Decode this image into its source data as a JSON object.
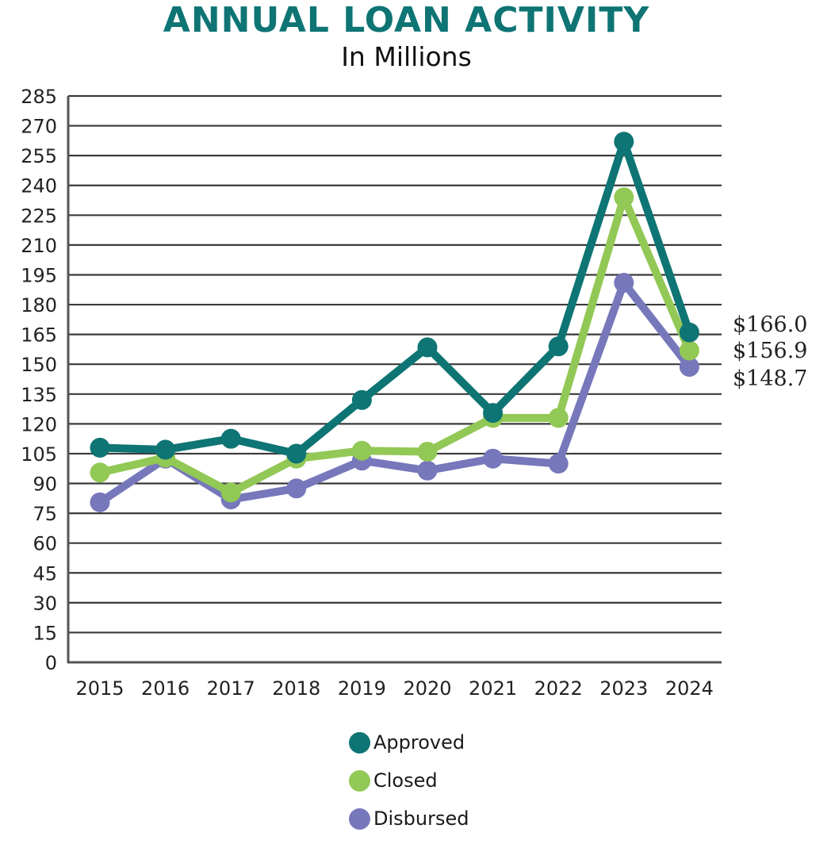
{
  "chart_data": {
    "type": "line",
    "title": "ANNUAL LOAN ACTIVITY",
    "subtitle": "In Millions",
    "xlabel": "",
    "ylabel": "",
    "categories": [
      "2015",
      "2016",
      "2017",
      "2018",
      "2019",
      "2020",
      "2021",
      "2022",
      "2023",
      "2024"
    ],
    "ylim": [
      0,
      285
    ],
    "yticks": [
      "0",
      "15",
      "30",
      "45",
      "60",
      "75",
      "90",
      "105",
      "120",
      "135",
      "150",
      "165",
      "180",
      "195",
      "210",
      "225",
      "240",
      "255",
      "270",
      "285"
    ],
    "ytick_values": [
      0,
      15,
      30,
      45,
      60,
      75,
      90,
      105,
      120,
      135,
      150,
      165,
      180,
      195,
      210,
      225,
      240,
      255,
      270,
      285
    ],
    "grid": true,
    "legend_position": "bottom-center",
    "series": [
      {
        "name": "Approved",
        "color": "#0e7474",
        "values": [
          108,
          107,
          112.5,
          105,
          132,
          158.5,
          125.5,
          159,
          262,
          166.0
        ]
      },
      {
        "name": "Closed",
        "color": "#92c855",
        "values": [
          95.5,
          103,
          85.5,
          102.5,
          106.5,
          106,
          123,
          123,
          234,
          156.9
        ]
      },
      {
        "name": "Disbursed",
        "color": "#7777bb",
        "values": [
          80.5,
          102.5,
          82,
          87.5,
          101.5,
          96.5,
          102.5,
          100,
          191,
          148.7
        ]
      }
    ],
    "annotations": [
      {
        "series": "Approved",
        "category": "2024",
        "text": "$166.0"
      },
      {
        "series": "Closed",
        "category": "2024",
        "text": "$156.9"
      },
      {
        "series": "Disbursed",
        "category": "2024",
        "text": "$148.7"
      }
    ]
  }
}
